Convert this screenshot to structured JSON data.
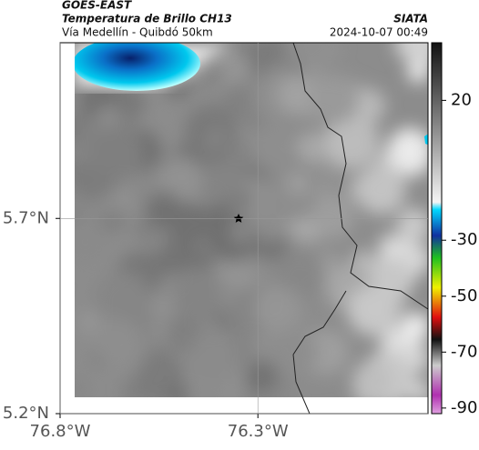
{
  "chart_data": {
    "type": "map",
    "title": "GOES-EAST",
    "subtitle": "Temperatura de Brillo CH13",
    "route": "Vía Medellín - Quibdó 50km",
    "source": "SIATA",
    "timestamp": "2024-10-07 00:49",
    "xlim": [
      -76.8,
      -75.87
    ],
    "ylim": [
      5.2,
      6.15
    ],
    "xticks": [
      {
        "value": -76.8,
        "label": "76.8°W"
      },
      {
        "value": -76.3,
        "label": "76.3°W"
      }
    ],
    "yticks": [
      {
        "value": 5.2,
        "label": "5.2°N"
      },
      {
        "value": 5.7,
        "label": "5.7°N"
      }
    ],
    "grid": true,
    "colorbar": {
      "lim": [
        -92,
        40.6
      ],
      "ticks": [
        20,
        -30,
        -50,
        -70,
        -90
      ]
    }
  }
}
